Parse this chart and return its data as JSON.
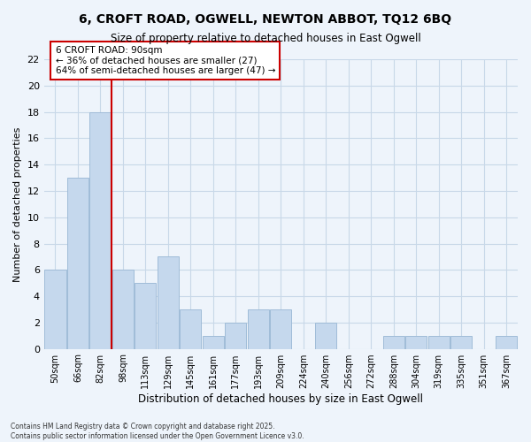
{
  "title1": "6, CROFT ROAD, OGWELL, NEWTON ABBOT, TQ12 6BQ",
  "title2": "Size of property relative to detached houses in East Ogwell",
  "xlabel": "Distribution of detached houses by size in East Ogwell",
  "ylabel": "Number of detached properties",
  "categories": [
    "50sqm",
    "66sqm",
    "82sqm",
    "98sqm",
    "113sqm",
    "129sqm",
    "145sqm",
    "161sqm",
    "177sqm",
    "193sqm",
    "209sqm",
    "224sqm",
    "240sqm",
    "256sqm",
    "272sqm",
    "288sqm",
    "304sqm",
    "319sqm",
    "335sqm",
    "351sqm",
    "367sqm"
  ],
  "values": [
    6,
    13,
    18,
    6,
    5,
    7,
    3,
    1,
    2,
    3,
    3,
    0,
    2,
    0,
    0,
    1,
    1,
    1,
    1,
    0,
    1
  ],
  "bar_color": "#c5d8ed",
  "bar_edge_color": "#a0bcd8",
  "grid_color": "#c8d8e8",
  "bg_color": "#eef4fb",
  "red_line_x": 2.5,
  "annotation_title": "6 CROFT ROAD: 90sqm",
  "annotation_line1": "← 36% of detached houses are smaller (27)",
  "annotation_line2": "64% of semi-detached houses are larger (47) →",
  "annotation_box_color": "#ffffff",
  "annotation_box_edge_color": "#cc0000",
  "footer1": "Contains HM Land Registry data © Crown copyright and database right 2025.",
  "footer2": "Contains public sector information licensed under the Open Government Licence v3.0.",
  "ylim": [
    0,
    22
  ],
  "yticks": [
    0,
    2,
    4,
    6,
    8,
    10,
    12,
    14,
    16,
    18,
    20,
    22
  ]
}
